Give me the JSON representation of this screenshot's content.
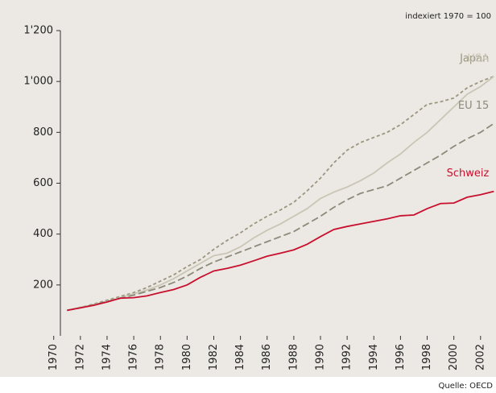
{
  "chart_data": {
    "type": "line",
    "annotation": "indexiert 1970 = 100",
    "source": "Quelle: OECD",
    "x": [
      1971,
      1972,
      1973,
      1974,
      1975,
      1976,
      1977,
      1978,
      1979,
      1980,
      1981,
      1982,
      1983,
      1984,
      1985,
      1986,
      1987,
      1988,
      1989,
      1990,
      1991,
      1992,
      1993,
      1994,
      1995,
      1996,
      1997,
      1998,
      1999,
      2000,
      2001,
      2002,
      2003
    ],
    "series": [
      {
        "name": "Japan",
        "color": "#9a9680",
        "dash": "short",
        "values": [
          100,
          112,
          125,
          140,
          155,
          170,
          190,
          215,
          240,
          272,
          300,
          340,
          375,
          405,
          440,
          470,
          495,
          525,
          570,
          620,
          680,
          730,
          760,
          780,
          800,
          830,
          870,
          910,
          920,
          935,
          975,
          1000,
          1020
        ]
      },
      {
        "name": "USA",
        "color": "#c9c6b6",
        "dash": "none",
        "values": [
          100,
          112,
          122,
          135,
          150,
          165,
          180,
          200,
          225,
          255,
          285,
          315,
          325,
          350,
          385,
          415,
          440,
          470,
          500,
          540,
          565,
          585,
          610,
          640,
          680,
          715,
          760,
          800,
          850,
          900,
          950,
          980,
          1020
        ]
      },
      {
        "name": "EU 15",
        "color": "#8c8a7a",
        "dash": "long",
        "values": [
          100,
          110,
          122,
          135,
          148,
          160,
          175,
          190,
          210,
          235,
          265,
          290,
          310,
          330,
          350,
          370,
          390,
          410,
          440,
          470,
          505,
          535,
          560,
          575,
          590,
          620,
          650,
          680,
          710,
          745,
          775,
          800,
          835
        ]
      },
      {
        "name": "Schweiz",
        "color": "#c8102e",
        "dash": "none",
        "values": [
          100,
          110,
          120,
          133,
          148,
          150,
          157,
          170,
          182,
          200,
          230,
          255,
          265,
          278,
          295,
          313,
          325,
          338,
          360,
          390,
          418,
          430,
          440,
          450,
          460,
          472,
          475,
          500,
          520,
          522,
          545,
          555,
          568
        ]
      }
    ],
    "xlim": [
      1970.5,
      2003.1
    ],
    "xticks": [
      1970,
      1972,
      1974,
      1976,
      1978,
      1980,
      1982,
      1984,
      1986,
      1988,
      1990,
      1992,
      1994,
      1996,
      1998,
      2000,
      2002
    ],
    "ylim": [
      0,
      1200
    ],
    "yticks": [
      200,
      400,
      600,
      800,
      {
        "value": 1000,
        "label": "1'000"
      },
      {
        "value": 1200,
        "label": "1'200"
      }
    ]
  }
}
